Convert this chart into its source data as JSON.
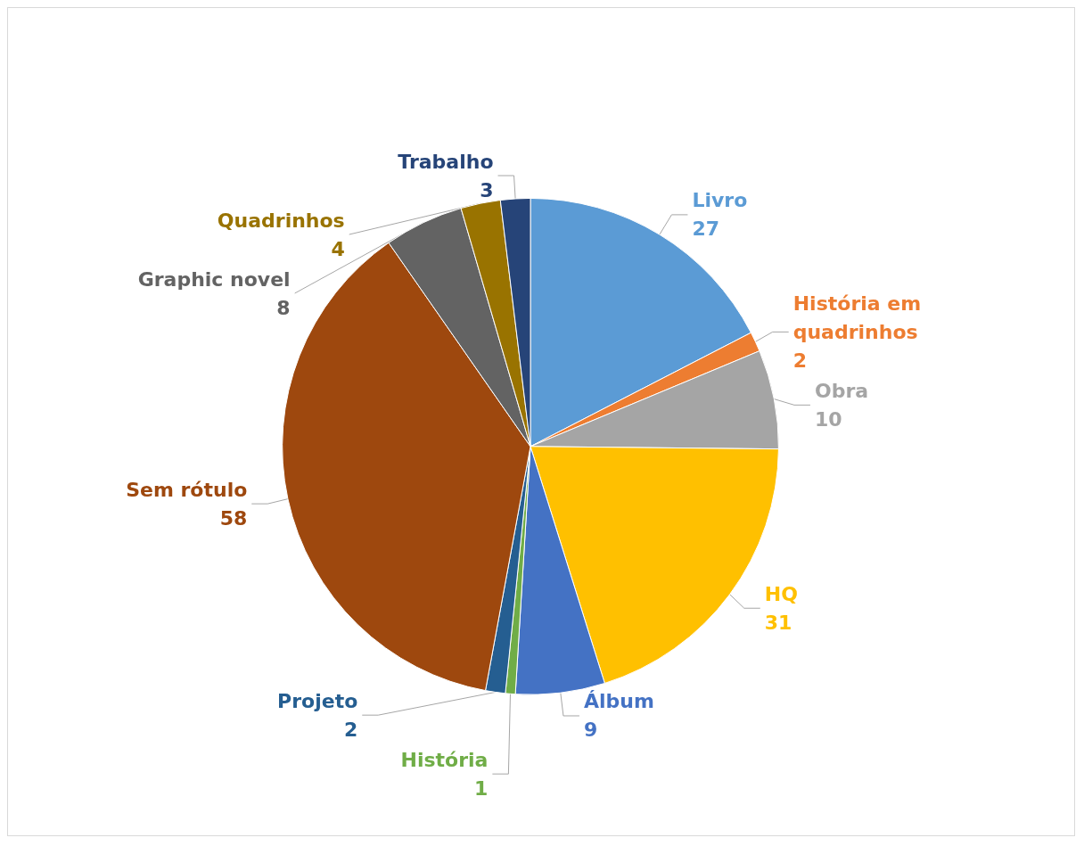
{
  "chart_data": {
    "type": "pie",
    "categories": [
      "Livro",
      "História em quadrinhos",
      "Obra",
      "HQ",
      "Álbum",
      "História",
      "Projeto",
      "Sem rótulo",
      "Graphic novel",
      "Quadrinhos",
      "Trabalho"
    ],
    "values": [
      27,
      2,
      10,
      31,
      9,
      1,
      2,
      58,
      8,
      4,
      3
    ],
    "colors": [
      "#5b9bd5",
      "#ed7d31",
      "#a5a5a5",
      "#ffc000",
      "#4472c4",
      "#70ad47",
      "#255e91",
      "#9e480e",
      "#636363",
      "#997300",
      "#264478"
    ],
    "data_labels": true,
    "legend": false
  }
}
